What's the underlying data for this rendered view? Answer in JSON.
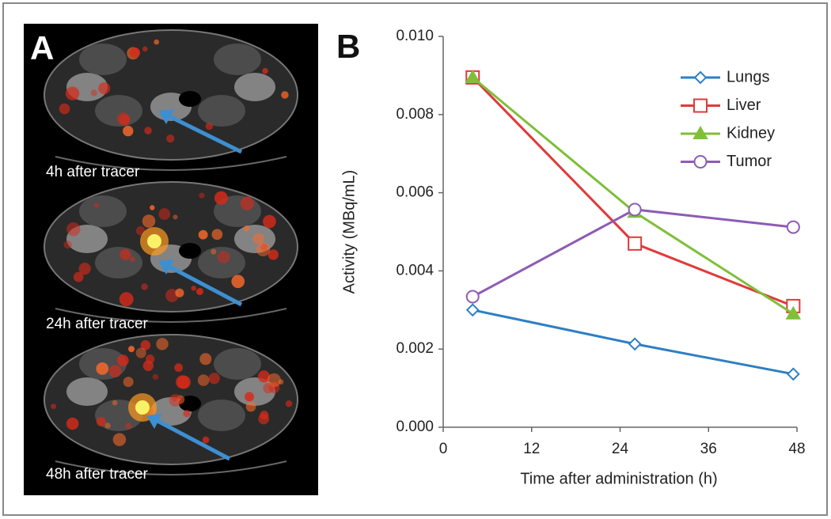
{
  "panel_a": {
    "label": "A",
    "captions": [
      "4h after tracer",
      "24h after tracer",
      "48h after tracer"
    ]
  },
  "chart_data": {
    "type": "line",
    "panel_label": "B",
    "x_label": "Time after administration (h)",
    "y_label": "Activity (MBq/mL)",
    "x": [
      4,
      26,
      47.5
    ],
    "series": [
      {
        "name": "Lungs",
        "color": "#2e7fc4",
        "marker": "diamond",
        "marker_filled": false,
        "values": [
          0.003,
          0.00213,
          0.00136
        ]
      },
      {
        "name": "Liver",
        "color": "#e03a3a",
        "marker": "square",
        "marker_filled": false,
        "values": [
          0.00895,
          0.0047,
          0.0031
        ]
      },
      {
        "name": "Kidney",
        "color": "#7fbf3a",
        "marker": "triangle",
        "marker_filled": true,
        "values": [
          0.00895,
          0.0055,
          0.0029
        ]
      },
      {
        "name": "Tumor",
        "color": "#8e5bb5",
        "marker": "circle",
        "marker_filled": false,
        "values": [
          0.00334,
          0.00557,
          0.00512
        ]
      }
    ],
    "xlim": [
      0,
      48
    ],
    "xticks": [
      0,
      12,
      24,
      36,
      48
    ],
    "ylim": [
      0,
      0.01
    ],
    "yticks": [
      {
        "value": 0,
        "label": "0.000"
      },
      {
        "value": 0.002,
        "label": "0.002"
      },
      {
        "value": 0.004,
        "label": "0.004"
      },
      {
        "value": 0.006,
        "label": "0.006"
      },
      {
        "value": 0.008,
        "label": "0.008"
      },
      {
        "value": 0.01,
        "label": "0.010"
      }
    ],
    "grid": false,
    "legend": "upper right"
  }
}
